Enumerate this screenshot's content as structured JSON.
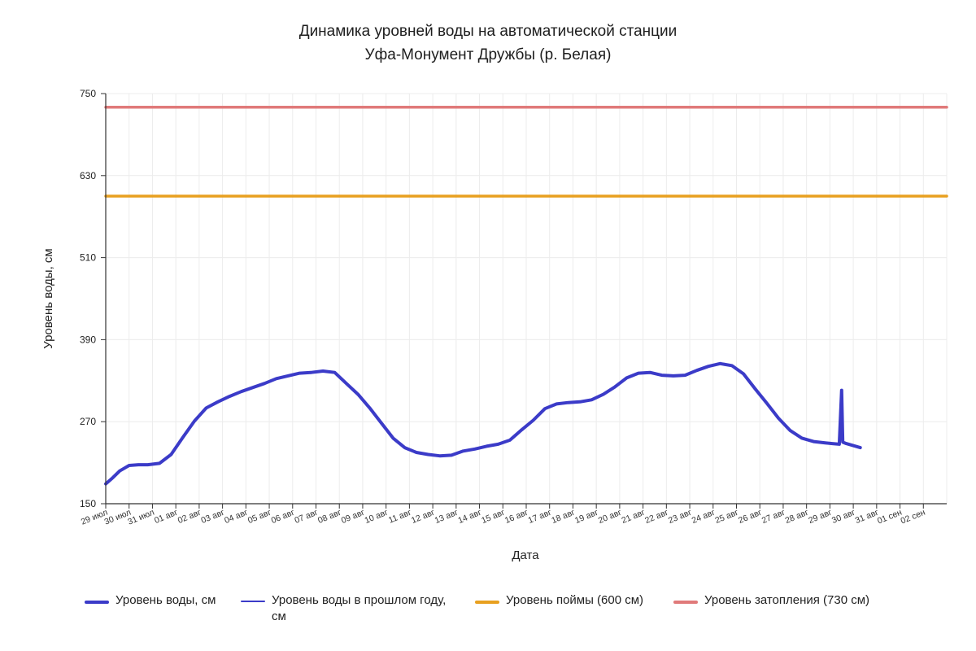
{
  "title_line1": "Динамика уровней воды на автоматической станции",
  "title_line2": "Уфа-Монумент Дружбы (р. Белая)",
  "colors": {
    "level": "#3b3bc8",
    "prev_year": "#3b3bc8",
    "floodplain": "#e8a020",
    "flooding": "#e07a7a",
    "grid": "#ececec",
    "axis": "#333333"
  },
  "chart_data": {
    "type": "line",
    "xlabel": "Дата",
    "ylabel": "Уровень воды, см",
    "ylim": [
      150,
      750
    ],
    "yticks": [
      150,
      270,
      390,
      510,
      630,
      750
    ],
    "x_categories": [
      "29 июл",
      "30 июл",
      "31 июл",
      "01 авг",
      "02 авг",
      "03 авг",
      "04 авг",
      "05 авг",
      "06 авг",
      "07 авг",
      "08 авг",
      "09 авг",
      "10 авг",
      "11 авг",
      "12 авг",
      "13 авг",
      "14 авг",
      "15 авг",
      "16 авг",
      "17 авг",
      "18 авг",
      "19 авг",
      "20 авг",
      "21 авг",
      "22 авг",
      "23 авг",
      "24 авг",
      "25 авг",
      "26 авг",
      "27 авг",
      "28 авг",
      "29 авг",
      "30 авг",
      "31 авг",
      "01 сен",
      "02 сен"
    ],
    "x_extent": [
      0,
      36
    ],
    "grid": true,
    "legend_position": "bottom",
    "series": [
      {
        "name": "Уровень воды, см",
        "x": [
          0,
          0.3,
          0.6,
          1.0,
          1.4,
          1.8,
          2.3,
          2.8,
          3.3,
          3.8,
          4.3,
          4.8,
          5.3,
          5.8,
          6.3,
          6.8,
          7.3,
          7.8,
          8.3,
          8.8,
          9.3,
          9.8,
          10.3,
          10.8,
          11.3,
          11.8,
          12.3,
          12.8,
          13.3,
          13.8,
          14.3,
          14.8,
          15.3,
          15.8,
          16.3,
          16.8,
          17.3,
          17.8,
          18.3,
          18.8,
          19.3,
          19.8,
          20.3,
          20.8,
          21.3,
          21.8,
          22.3,
          22.8,
          23.3,
          23.8,
          24.3,
          24.8,
          25.3,
          25.8,
          26.3,
          26.8,
          27.3,
          27.8,
          28.3,
          28.8,
          29.3,
          29.8,
          30.3,
          30.8,
          31.1,
          31.4,
          31.5,
          31.55,
          31.7,
          32.0,
          32.3
        ],
        "values": [
          179,
          188,
          198,
          206,
          207,
          207,
          209,
          222,
          247,
          271,
          290,
          299,
          307,
          314,
          320,
          326,
          333,
          337,
          341,
          342,
          344,
          342,
          326,
          310,
          290,
          268,
          246,
          232,
          225,
          222,
          220,
          221,
          227,
          230,
          234,
          237,
          243,
          258,
          272,
          289,
          296,
          298,
          299,
          302,
          310,
          321,
          334,
          341,
          342,
          338,
          337,
          338,
          345,
          351,
          355,
          352,
          340,
          318,
          297,
          275,
          257,
          246,
          241,
          239,
          238,
          237,
          316,
          240,
          238,
          235,
          232
        ]
      },
      {
        "name": "Уровень воды в прошлом году, см",
        "x": [],
        "values": []
      },
      {
        "name": "Уровень поймы (600 см)",
        "x": [
          0,
          36
        ],
        "values": [
          600,
          600
        ]
      },
      {
        "name": "Уровень затопления (730 см)",
        "x": [
          0,
          36
        ],
        "values": [
          730,
          730
        ]
      }
    ]
  },
  "legend": [
    {
      "label_line1": "Уровень воды, см",
      "label_line2": "",
      "key": "level"
    },
    {
      "label_line1": "Уровень воды в прошлом году,",
      "label_line2": "см",
      "key": "prev_year"
    },
    {
      "label_line1": "Уровень поймы (600 см)",
      "label_line2": "",
      "key": "floodplain"
    },
    {
      "label_line1": "Уровень затопления (730 см)",
      "label_line2": "",
      "key": "flooding"
    }
  ]
}
